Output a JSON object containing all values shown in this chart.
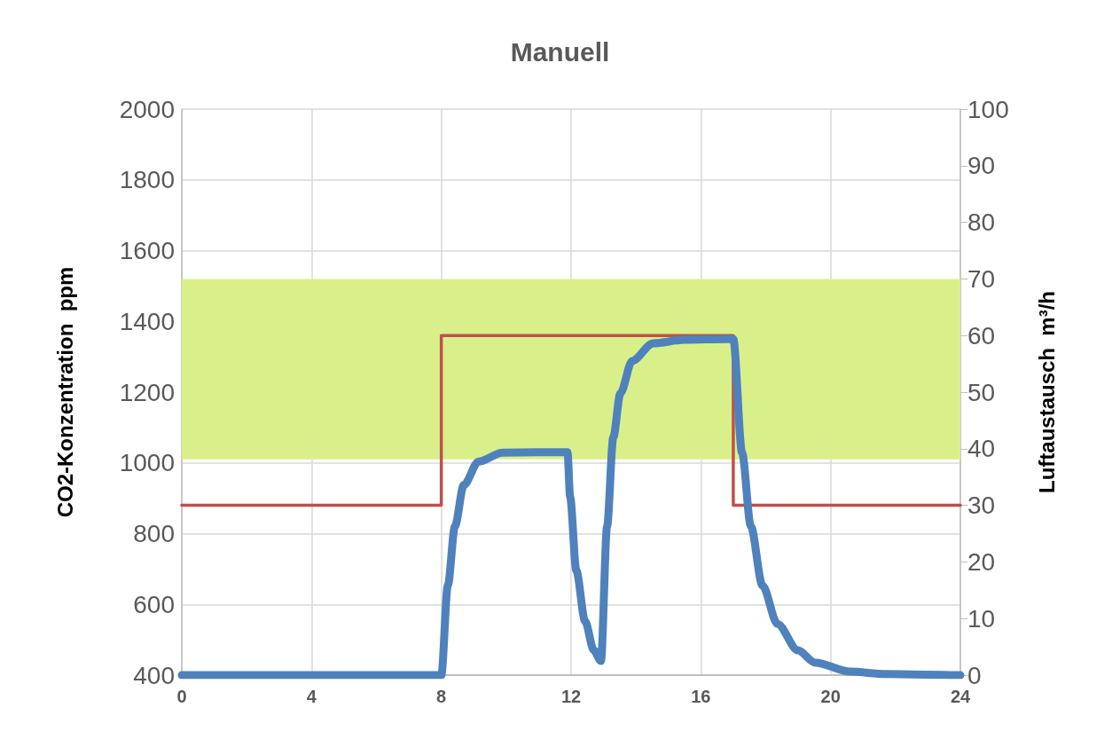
{
  "chart_data": {
    "type": "line",
    "title": "Manuell",
    "ylabel": "CO2-Konzentration  ppm",
    "y2label": "Luftaustausch  m³/h",
    "xlim": [
      0,
      24
    ],
    "xticks": [
      0,
      4,
      8,
      12,
      16,
      20,
      24
    ],
    "ylim": [
      400,
      2000
    ],
    "yticks": [
      400,
      600,
      800,
      1000,
      1200,
      1400,
      1600,
      1800,
      2000
    ],
    "y2lim": [
      0,
      100
    ],
    "y2ticks": [
      0,
      10,
      20,
      30,
      40,
      50,
      60,
      70,
      80,
      90,
      100
    ],
    "grid": true,
    "marker": "none",
    "line_style": "solid",
    "bands": [
      {
        "axis": "y",
        "from": 1010,
        "to": 1520,
        "color": "#d9f08a"
      }
    ],
    "series": [
      {
        "color": "#c0504d",
        "axis": "y2",
        "x": [
          0,
          8,
          8,
          17,
          17,
          24
        ],
        "values": [
          30,
          30,
          60,
          60,
          30,
          30
        ]
      },
      {
        "color": "#4f81bd",
        "x": [
          0,
          8,
          8.2,
          8.42,
          8.69,
          9.15,
          9.89,
          11,
          11.89,
          11.97,
          12.16,
          12.43,
          12.7,
          12.92,
          13.11,
          13.3,
          13.52,
          13.88,
          14.53,
          15.5,
          16.8,
          17,
          17.27,
          17.54,
          17.9,
          18.36,
          18.99,
          19.53,
          20.6,
          21.7,
          24
        ],
        "values": [
          400,
          400,
          653,
          821,
          937,
          1004,
          1029,
          1030,
          1030,
          904,
          696,
          553,
          470,
          440,
          821,
          1072,
          1197,
          1288,
          1338,
          1348,
          1350,
          1350,
          1029,
          821,
          653,
          545,
          470,
          435,
          410,
          403,
          400
        ]
      }
    ]
  }
}
